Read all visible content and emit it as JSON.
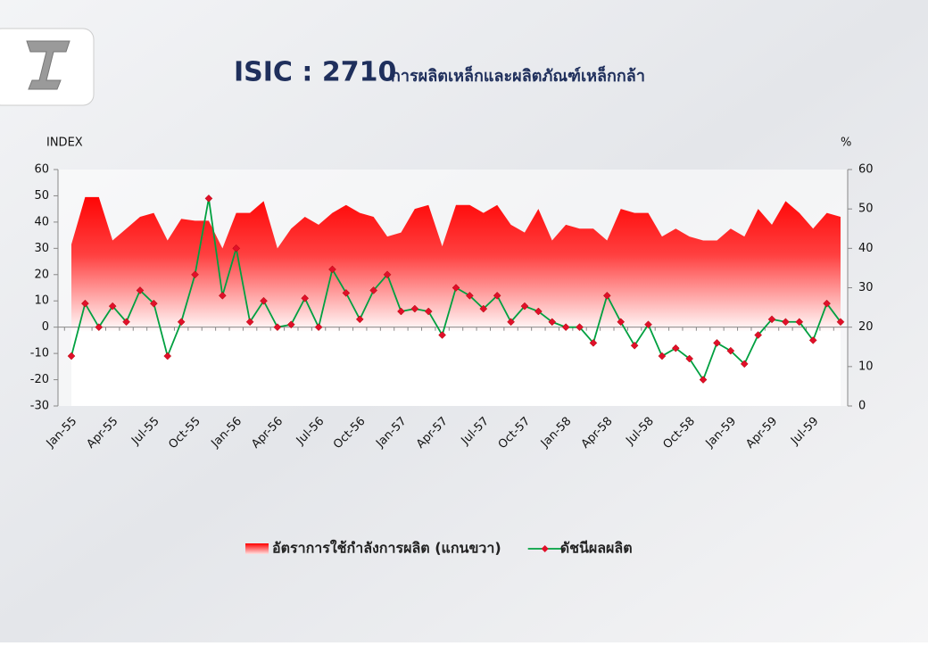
{
  "chart_data": {
    "type": "area-line",
    "title": "ISIC : 2710",
    "subtitle": "การผลิตเหล็กและผลิตภัณฑ์เหล็กกล้า",
    "y_label": "INDEX",
    "y2_label": "%",
    "categories": [
      "Jan-55",
      null,
      null,
      "Apr-55",
      null,
      null,
      "Jul-55",
      null,
      null,
      "Oct-55",
      null,
      null,
      "Jan-56",
      null,
      null,
      "Apr-56",
      null,
      null,
      "Jul-56",
      null,
      null,
      "Oct-56",
      null,
      null,
      "Jan-57",
      null,
      null,
      "Apr-57",
      null,
      null,
      "Jul-57",
      null,
      null,
      "Oct-57",
      null,
      null,
      "Jan-58",
      null,
      null,
      "Apr-58",
      null,
      null,
      "Jul-58",
      null,
      null,
      "Oct-58",
      null,
      null,
      "Jan-59",
      null,
      null,
      "Apr-59",
      null,
      null,
      "Jul-59",
      null,
      null
    ],
    "series": [
      {
        "name": "อัตราการใช้กำลังการผลิต  (แกนขวา)",
        "type": "area",
        "axis": "y2",
        "color": "#ff0000",
        "values": [
          41,
          53,
          53,
          42,
          45,
          48,
          49,
          42,
          47.5,
          47,
          47,
          40,
          49,
          49,
          52,
          40,
          45,
          48,
          46,
          49,
          51,
          49,
          48,
          43,
          44,
          50,
          51,
          40.5,
          51,
          51,
          49,
          51,
          46,
          44,
          50,
          42,
          46,
          45,
          45,
          42,
          50,
          49,
          49,
          43,
          45,
          43,
          42,
          42,
          45,
          43,
          50,
          46,
          52,
          49,
          45,
          49,
          48
        ]
      },
      {
        "name": "ดัชนีผลผลิต",
        "type": "line",
        "color": "#00a040",
        "marker_color": "#e0102a",
        "values": [
          -11,
          9,
          0,
          8,
          2,
          14,
          9,
          -11,
          2,
          20,
          49,
          12,
          30,
          2,
          10,
          0,
          1,
          11,
          0,
          22,
          13,
          3,
          14,
          20,
          6,
          7,
          6,
          -3,
          15,
          12,
          7,
          12,
          2,
          8,
          6,
          2,
          0,
          0,
          -6,
          12,
          2,
          -7,
          1,
          -11,
          -8,
          -12,
          -20,
          -6,
          -9,
          -14,
          -3,
          3,
          2,
          2,
          -5,
          9,
          2
        ]
      }
    ],
    "ylim": [
      -30,
      60
    ],
    "yticks": [
      -30,
      -20,
      -10,
      0,
      10,
      20,
      30,
      40,
      50,
      60
    ],
    "y2lim": [
      0,
      60
    ],
    "y2ticks": [
      0,
      10,
      20,
      30,
      40,
      50,
      60
    ],
    "grid": false
  }
}
